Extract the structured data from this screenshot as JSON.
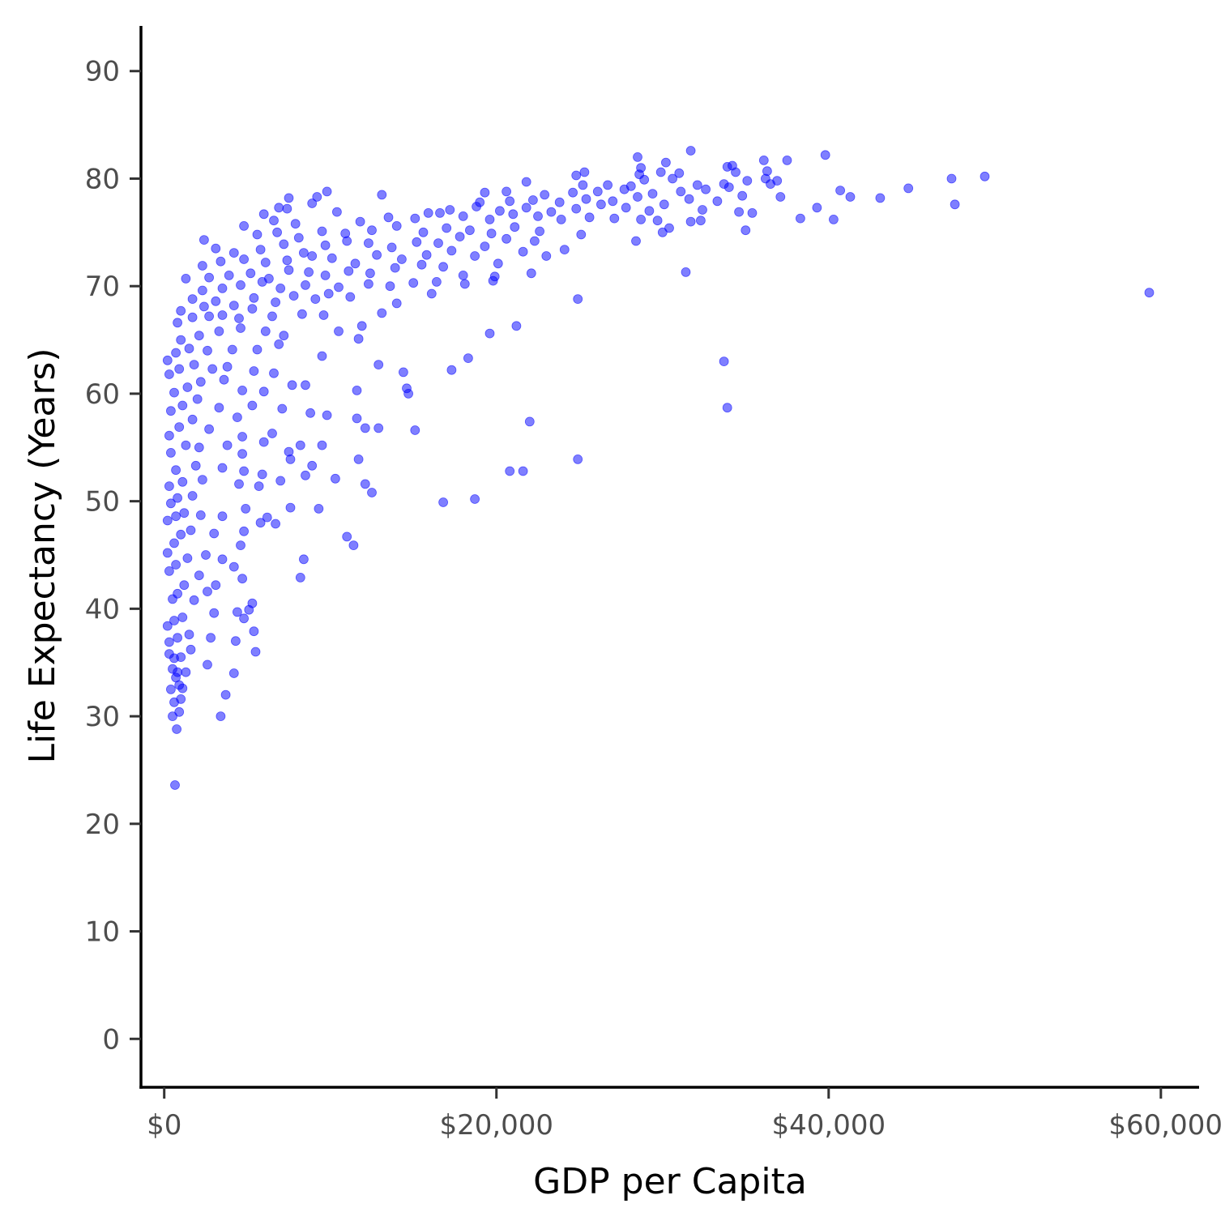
{
  "chart_data": {
    "type": "scatter",
    "title": "",
    "xlabel": "GDP per Capita",
    "ylabel": "Life Expectancy (Years)",
    "xlim": [
      -1400,
      62300
    ],
    "ylim": [
      -4.5,
      94.2
    ],
    "x_ticks": [
      {
        "value": 0,
        "label": "$0"
      },
      {
        "value": 20000,
        "label": "$20,000"
      },
      {
        "value": 40000,
        "label": "$40,000"
      },
      {
        "value": 60000,
        "label": "$60,000"
      }
    ],
    "y_ticks": [
      {
        "value": 0,
        "label": "0"
      },
      {
        "value": 10,
        "label": "10"
      },
      {
        "value": 20,
        "label": "20"
      },
      {
        "value": 30,
        "label": "30"
      },
      {
        "value": 40,
        "label": "40"
      },
      {
        "value": 50,
        "label": "50"
      },
      {
        "value": 60,
        "label": "60"
      },
      {
        "value": 70,
        "label": "70"
      },
      {
        "value": 80,
        "label": "80"
      },
      {
        "value": 90,
        "label": "90"
      }
    ],
    "grid": false,
    "legend": "none",
    "point_color": "#0000FF",
    "point_opacity": 0.5,
    "points": [
      [
        650,
        23.6
      ],
      [
        750,
        28.8
      ],
      [
        500,
        30.0
      ],
      [
        3400,
        30.0
      ],
      [
        3700,
        32.0
      ],
      [
        900,
        30.4
      ],
      [
        600,
        31.3
      ],
      [
        1000,
        31.6
      ],
      [
        400,
        32.5
      ],
      [
        900,
        32.9
      ],
      [
        1100,
        32.6
      ],
      [
        700,
        33.6
      ],
      [
        500,
        34.4
      ],
      [
        800,
        34.1
      ],
      [
        1300,
        34.1
      ],
      [
        2600,
        34.8
      ],
      [
        4200,
        34.0
      ],
      [
        300,
        35.8
      ],
      [
        600,
        35.4
      ],
      [
        1000,
        35.5
      ],
      [
        1600,
        36.2
      ],
      [
        5500,
        36.0
      ],
      [
        300,
        36.9
      ],
      [
        800,
        37.3
      ],
      [
        1500,
        37.6
      ],
      [
        2800,
        37.3
      ],
      [
        4300,
        37.0
      ],
      [
        5400,
        37.9
      ],
      [
        200,
        38.4
      ],
      [
        600,
        38.9
      ],
      [
        1100,
        39.2
      ],
      [
        3000,
        39.6
      ],
      [
        1800,
        40.8
      ],
      [
        4400,
        39.7
      ],
      [
        4800,
        39.1
      ],
      [
        5100,
        39.9
      ],
      [
        5300,
        40.5
      ],
      [
        500,
        40.9
      ],
      [
        800,
        41.4
      ],
      [
        1200,
        42.2
      ],
      [
        2600,
        41.6
      ],
      [
        3100,
        42.2
      ],
      [
        2100,
        43.1
      ],
      [
        4700,
        42.8
      ],
      [
        8200,
        42.9
      ],
      [
        300,
        43.5
      ],
      [
        700,
        44.1
      ],
      [
        1400,
        44.7
      ],
      [
        2500,
        45.0
      ],
      [
        3500,
        44.6
      ],
      [
        4200,
        43.9
      ],
      [
        4600,
        45.9
      ],
      [
        8400,
        44.6
      ],
      [
        11000,
        46.7
      ],
      [
        11400,
        45.9
      ],
      [
        200,
        45.2
      ],
      [
        600,
        46.1
      ],
      [
        1000,
        46.9
      ],
      [
        1600,
        47.3
      ],
      [
        3000,
        47.0
      ],
      [
        4800,
        47.2
      ],
      [
        5800,
        48.0
      ],
      [
        6700,
        47.9
      ],
      [
        200,
        48.2
      ],
      [
        700,
        48.6
      ],
      [
        1200,
        48.9
      ],
      [
        2200,
        48.7
      ],
      [
        3500,
        48.6
      ],
      [
        6200,
        48.5
      ],
      [
        400,
        49.8
      ],
      [
        800,
        50.3
      ],
      [
        1700,
        50.5
      ],
      [
        4900,
        49.3
      ],
      [
        7600,
        49.4
      ],
      [
        9300,
        49.3
      ],
      [
        12500,
        50.8
      ],
      [
        12100,
        51.6
      ],
      [
        16800,
        49.9
      ],
      [
        18700,
        50.2
      ],
      [
        300,
        51.4
      ],
      [
        1100,
        51.8
      ],
      [
        2300,
        52.0
      ],
      [
        4500,
        51.6
      ],
      [
        5700,
        51.4
      ],
      [
        7000,
        51.9
      ],
      [
        8500,
        52.4
      ],
      [
        10300,
        52.1
      ],
      [
        11700,
        53.9
      ],
      [
        700,
        52.9
      ],
      [
        1900,
        53.3
      ],
      [
        3500,
        53.1
      ],
      [
        4800,
        52.8
      ],
      [
        5900,
        52.5
      ],
      [
        7600,
        53.9
      ],
      [
        8900,
        53.3
      ],
      [
        20800,
        52.8
      ],
      [
        21600,
        52.8
      ],
      [
        24900,
        53.9
      ],
      [
        400,
        54.5
      ],
      [
        1300,
        55.2
      ],
      [
        2100,
        55.0
      ],
      [
        3800,
        55.2
      ],
      [
        4700,
        54.4
      ],
      [
        6000,
        55.5
      ],
      [
        7500,
        54.6
      ],
      [
        8200,
        55.2
      ],
      [
        9500,
        55.2
      ],
      [
        12100,
        56.8
      ],
      [
        12900,
        56.8
      ],
      [
        15100,
        56.6
      ],
      [
        300,
        56.1
      ],
      [
        900,
        56.9
      ],
      [
        1700,
        57.6
      ],
      [
        2700,
        56.7
      ],
      [
        4700,
        56.0
      ],
      [
        6500,
        56.3
      ],
      [
        8800,
        58.2
      ],
      [
        9800,
        58.0
      ],
      [
        11600,
        57.7
      ],
      [
        22000,
        57.4
      ],
      [
        33900,
        58.7
      ],
      [
        400,
        58.4
      ],
      [
        1100,
        58.9
      ],
      [
        2000,
        59.5
      ],
      [
        3300,
        58.7
      ],
      [
        4400,
        57.8
      ],
      [
        5300,
        58.9
      ],
      [
        7100,
        58.6
      ],
      [
        8500,
        60.8
      ],
      [
        11600,
        60.3
      ],
      [
        14700,
        60.0
      ],
      [
        14600,
        60.5
      ],
      [
        600,
        60.1
      ],
      [
        1400,
        60.6
      ],
      [
        2200,
        61.1
      ],
      [
        3600,
        61.3
      ],
      [
        4700,
        60.3
      ],
      [
        6000,
        60.2
      ],
      [
        7700,
        60.8
      ],
      [
        300,
        61.8
      ],
      [
        900,
        62.3
      ],
      [
        1800,
        62.7
      ],
      [
        2900,
        62.3
      ],
      [
        3800,
        62.5
      ],
      [
        5400,
        62.1
      ],
      [
        6600,
        61.9
      ],
      [
        12900,
        62.7
      ],
      [
        14400,
        62.0
      ],
      [
        17300,
        62.2
      ],
      [
        18300,
        63.3
      ],
      [
        33700,
        63.0
      ],
      [
        700,
        63.8
      ],
      [
        1500,
        64.2
      ],
      [
        2600,
        64.0
      ],
      [
        4100,
        64.1
      ],
      [
        5600,
        64.1
      ],
      [
        6900,
        64.6
      ],
      [
        9500,
        63.5
      ],
      [
        200,
        63.1
      ],
      [
        1000,
        65.0
      ],
      [
        2100,
        65.4
      ],
      [
        3300,
        65.8
      ],
      [
        4600,
        66.1
      ],
      [
        6100,
        65.8
      ],
      [
        7200,
        65.4
      ],
      [
        10500,
        65.8
      ],
      [
        11700,
        65.1
      ],
      [
        19600,
        65.6
      ],
      [
        21200,
        66.3
      ],
      [
        800,
        66.6
      ],
      [
        1700,
        67.1
      ],
      [
        2700,
        67.2
      ],
      [
        3500,
        67.3
      ],
      [
        4500,
        67.0
      ],
      [
        5300,
        67.9
      ],
      [
        6500,
        67.2
      ],
      [
        8300,
        67.4
      ],
      [
        9600,
        67.3
      ],
      [
        11900,
        66.3
      ],
      [
        1000,
        67.7
      ],
      [
        2400,
        68.1
      ],
      [
        3100,
        68.6
      ],
      [
        4200,
        68.2
      ],
      [
        5400,
        68.9
      ],
      [
        6700,
        68.5
      ],
      [
        7800,
        69.1
      ],
      [
        9100,
        68.8
      ],
      [
        11200,
        69.0
      ],
      [
        13100,
        67.5
      ],
      [
        14000,
        68.4
      ],
      [
        16100,
        69.3
      ],
      [
        1700,
        68.8
      ],
      [
        2300,
        69.6
      ],
      [
        3500,
        69.8
      ],
      [
        4600,
        70.1
      ],
      [
        5900,
        70.4
      ],
      [
        7000,
        69.8
      ],
      [
        8500,
        70.1
      ],
      [
        9900,
        69.3
      ],
      [
        10500,
        69.9
      ],
      [
        12300,
        70.2
      ],
      [
        13600,
        70.0
      ],
      [
        15000,
        70.3
      ],
      [
        16400,
        70.4
      ],
      [
        18100,
        70.2
      ],
      [
        19800,
        70.5
      ],
      [
        24900,
        68.8
      ],
      [
        59300,
        69.4
      ],
      [
        1300,
        70.7
      ],
      [
        2700,
        70.8
      ],
      [
        3900,
        71.0
      ],
      [
        5200,
        71.2
      ],
      [
        6300,
        70.7
      ],
      [
        7500,
        71.5
      ],
      [
        8700,
        71.3
      ],
      [
        9700,
        71.0
      ],
      [
        11100,
        71.4
      ],
      [
        12400,
        71.2
      ],
      [
        13900,
        71.7
      ],
      [
        15500,
        72.0
      ],
      [
        16800,
        71.8
      ],
      [
        18000,
        71.0
      ],
      [
        19900,
        70.9
      ],
      [
        22100,
        71.2
      ],
      [
        31400,
        71.3
      ],
      [
        2300,
        71.9
      ],
      [
        3400,
        72.3
      ],
      [
        4800,
        72.5
      ],
      [
        6100,
        72.2
      ],
      [
        7400,
        72.4
      ],
      [
        8900,
        72.8
      ],
      [
        10100,
        72.6
      ],
      [
        11500,
        72.1
      ],
      [
        12800,
        72.9
      ],
      [
        14300,
        72.5
      ],
      [
        15800,
        72.9
      ],
      [
        17300,
        73.3
      ],
      [
        18700,
        72.8
      ],
      [
        20100,
        72.1
      ],
      [
        21600,
        73.2
      ],
      [
        23000,
        72.8
      ],
      [
        3100,
        73.5
      ],
      [
        4200,
        73.1
      ],
      [
        5800,
        73.4
      ],
      [
        7200,
        73.9
      ],
      [
        8400,
        73.1
      ],
      [
        9700,
        73.8
      ],
      [
        11000,
        74.2
      ],
      [
        12300,
        74.0
      ],
      [
        13700,
        73.6
      ],
      [
        15200,
        74.1
      ],
      [
        16500,
        74.0
      ],
      [
        17800,
        74.6
      ],
      [
        19300,
        73.7
      ],
      [
        20600,
        74.4
      ],
      [
        22300,
        74.2
      ],
      [
        24100,
        73.4
      ],
      [
        2400,
        74.3
      ],
      [
        5600,
        74.8
      ],
      [
        6800,
        75.0
      ],
      [
        8100,
        74.5
      ],
      [
        9500,
        75.1
      ],
      [
        10900,
        74.9
      ],
      [
        12500,
        75.2
      ],
      [
        14000,
        75.6
      ],
      [
        15600,
        75.0
      ],
      [
        17000,
        75.4
      ],
      [
        18400,
        75.2
      ],
      [
        19700,
        74.9
      ],
      [
        21100,
        75.5
      ],
      [
        22600,
        75.1
      ],
      [
        25100,
        74.8
      ],
      [
        28400,
        74.2
      ],
      [
        30000,
        75.0
      ],
      [
        30400,
        75.4
      ],
      [
        35000,
        75.2
      ],
      [
        4800,
        75.6
      ],
      [
        6600,
        76.1
      ],
      [
        7900,
        75.8
      ],
      [
        11800,
        76.0
      ],
      [
        13500,
        76.4
      ],
      [
        15100,
        76.3
      ],
      [
        16600,
        76.8
      ],
      [
        18000,
        76.5
      ],
      [
        19600,
        76.2
      ],
      [
        21000,
        76.7
      ],
      [
        22500,
        76.5
      ],
      [
        23900,
        76.2
      ],
      [
        25600,
        76.4
      ],
      [
        27100,
        76.3
      ],
      [
        28700,
        76.2
      ],
      [
        29700,
        76.1
      ],
      [
        31700,
        76.0
      ],
      [
        32300,
        76.1
      ],
      [
        38300,
        76.3
      ],
      [
        40300,
        76.2
      ],
      [
        6000,
        76.7
      ],
      [
        7400,
        77.2
      ],
      [
        10400,
        76.9
      ],
      [
        15900,
        76.8
      ],
      [
        17200,
        77.1
      ],
      [
        18800,
        77.4
      ],
      [
        20200,
        77.0
      ],
      [
        21800,
        77.3
      ],
      [
        23300,
        76.9
      ],
      [
        24800,
        77.2
      ],
      [
        26300,
        77.6
      ],
      [
        27800,
        77.3
      ],
      [
        29200,
        77.0
      ],
      [
        32400,
        77.1
      ],
      [
        34600,
        76.9
      ],
      [
        35400,
        76.8
      ],
      [
        39300,
        77.3
      ],
      [
        47600,
        77.6
      ],
      [
        6900,
        77.3
      ],
      [
        8900,
        77.7
      ],
      [
        19000,
        77.8
      ],
      [
        20800,
        77.9
      ],
      [
        22200,
        78.0
      ],
      [
        23800,
        77.8
      ],
      [
        25400,
        78.1
      ],
      [
        27000,
        77.9
      ],
      [
        28500,
        78.3
      ],
      [
        30100,
        77.6
      ],
      [
        31600,
        78.1
      ],
      [
        33300,
        77.9
      ],
      [
        34800,
        78.4
      ],
      [
        37100,
        78.3
      ],
      [
        41300,
        78.3
      ],
      [
        43100,
        78.2
      ],
      [
        7500,
        78.2
      ],
      [
        9200,
        78.3
      ],
      [
        9800,
        78.8
      ],
      [
        13100,
        78.5
      ],
      [
        19300,
        78.7
      ],
      [
        20600,
        78.8
      ],
      [
        22900,
        78.5
      ],
      [
        24600,
        78.7
      ],
      [
        26100,
        78.8
      ],
      [
        27700,
        79.0
      ],
      [
        29400,
        78.6
      ],
      [
        31100,
        78.8
      ],
      [
        32600,
        79.0
      ],
      [
        34000,
        79.2
      ],
      [
        36500,
        79.5
      ],
      [
        40700,
        78.9
      ],
      [
        44800,
        79.1
      ],
      [
        21800,
        79.7
      ],
      [
        25200,
        79.4
      ],
      [
        26700,
        79.4
      ],
      [
        28100,
        79.3
      ],
      [
        28900,
        79.9
      ],
      [
        30600,
        80.0
      ],
      [
        32100,
        79.4
      ],
      [
        33700,
        79.5
      ],
      [
        35100,
        79.8
      ],
      [
        36200,
        80.0
      ],
      [
        36900,
        79.8
      ],
      [
        47400,
        80.0
      ],
      [
        49400,
        80.2
      ],
      [
        24800,
        80.3
      ],
      [
        28600,
        80.4
      ],
      [
        29900,
        80.6
      ],
      [
        31000,
        80.5
      ],
      [
        34400,
        80.6
      ],
      [
        36300,
        80.7
      ],
      [
        25300,
        80.6
      ],
      [
        28700,
        81.0
      ],
      [
        30200,
        81.5
      ],
      [
        33900,
        81.1
      ],
      [
        34200,
        81.2
      ],
      [
        36100,
        81.7
      ],
      [
        37500,
        81.7
      ],
      [
        28500,
        82.0
      ],
      [
        39800,
        82.2
      ],
      [
        31700,
        82.6
      ]
    ]
  }
}
